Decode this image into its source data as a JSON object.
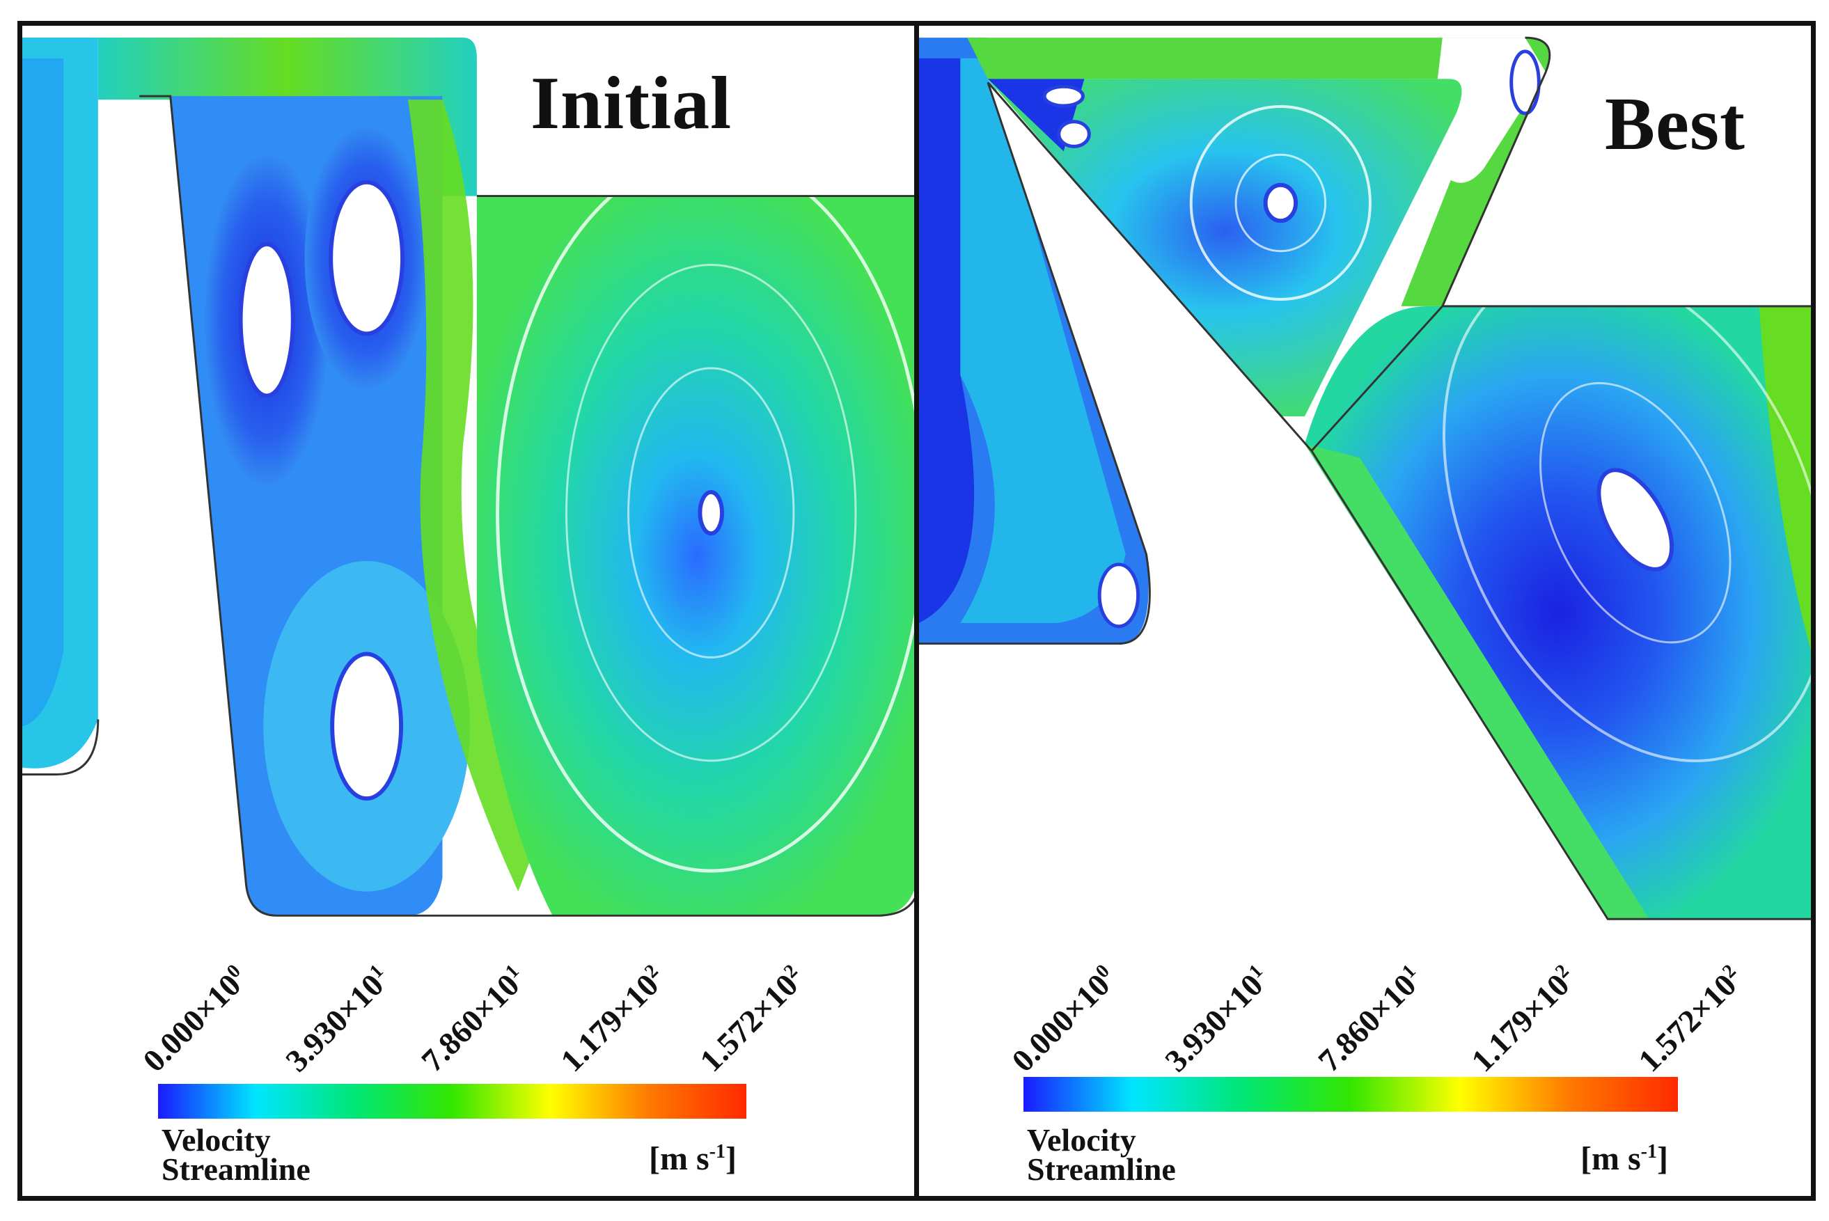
{
  "panels": {
    "initial": {
      "title": "Initial",
      "legend_title_line1": "Velocity",
      "legend_title_line2": "Streamline",
      "unit": "[m s",
      "unit_exp": "-1",
      "unit_close": "]"
    },
    "best": {
      "title": "Best",
      "legend_title_line1": "Velocity",
      "legend_title_line2": "Streamline",
      "unit": "[m s",
      "unit_exp": "-1",
      "unit_close": "]"
    }
  },
  "colorbar": {
    "ticks": [
      {
        "mantissa": "0.000×10",
        "exp": "0"
      },
      {
        "mantissa": "3.930×10",
        "exp": "1"
      },
      {
        "mantissa": "7.860×10",
        "exp": "1"
      },
      {
        "mantissa": "1.179×10",
        "exp": "2"
      },
      {
        "mantissa": "1.572×10",
        "exp": "2"
      }
    ],
    "colors": [
      "#1a1aff",
      "#00e6ff",
      "#00e676",
      "#33e600",
      "#ffff00",
      "#ff7a00",
      "#ff2a00"
    ]
  },
  "colors": {
    "slow": "#1a33ff",
    "mid": "#00ccee",
    "core": "#22dd88",
    "fast": "#66dd11",
    "wall": "#333333"
  }
}
